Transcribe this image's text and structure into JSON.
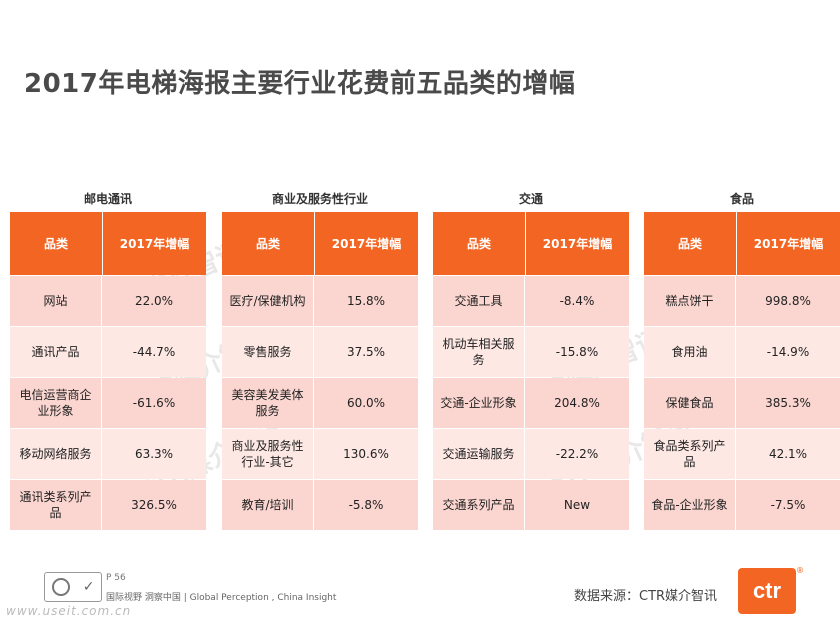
{
  "title": "2017年电梯海报主要行业花费前五品类的增幅",
  "header": {
    "col1": "品类",
    "col2": "2017年增幅"
  },
  "groups": [
    {
      "name": "邮电通讯",
      "rows": [
        {
          "category": "网站",
          "growth": "22.0%"
        },
        {
          "category": "通讯产品",
          "growth": "-44.7%"
        },
        {
          "category": "电信运营商企业形象",
          "growth": "-61.6%"
        },
        {
          "category": "移动网络服务",
          "growth": "63.3%"
        },
        {
          "category": "通讯类系列产品",
          "growth": "326.5%"
        }
      ]
    },
    {
      "name": "商业及服务性行业",
      "rows": [
        {
          "category": "医疗/保健机构",
          "growth": "15.8%"
        },
        {
          "category": "零售服务",
          "growth": "37.5%"
        },
        {
          "category": "美容美发美体服务",
          "growth": "60.0%"
        },
        {
          "category": "商业及服务性行业-其它",
          "growth": "130.6%"
        },
        {
          "category": "教育/培训",
          "growth": "-5.8%"
        }
      ]
    },
    {
      "name": "交通",
      "rows": [
        {
          "category": "交通工具",
          "growth": "-8.4%"
        },
        {
          "category": "机动车相关服务",
          "growth": "-15.8%"
        },
        {
          "category": "交通-企业形象",
          "growth": "204.8%"
        },
        {
          "category": "交通运输服务",
          "growth": "-22.2%"
        },
        {
          "category": "交通系列产品",
          "growth": "New"
        }
      ]
    },
    {
      "name": "食品",
      "rows": [
        {
          "category": "糕点饼干",
          "growth": "998.8%"
        },
        {
          "category": "食用油",
          "growth": "-14.9%"
        },
        {
          "category": "保健食品",
          "growth": "385.3%"
        },
        {
          "category": "食品类系列产品",
          "growth": "42.1%"
        },
        {
          "category": "食品-企业形象",
          "growth": "-7.5%"
        }
      ]
    }
  ],
  "watermark": "CTR媒介智讯",
  "footer": {
    "page": "P 56",
    "tagline": "国际视野  洞察中国 | Global Perception , China Insight",
    "site": "www.useit.com.cn",
    "source": "数据来源：CTR媒介智讯",
    "brand": "ctr",
    "reg_mark": "®"
  },
  "colors": {
    "accent": "#f26522",
    "row": "#fbd6d0",
    "row_alt": "#fde8e4"
  }
}
